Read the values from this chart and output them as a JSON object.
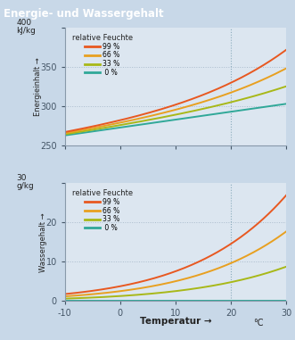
{
  "title": "Energie- und Wassergehalt",
  "title_bg": "#1a87c8",
  "title_color": "#ffffff",
  "fig_bg": "#c8d8e8",
  "plot_bg": "#dce6f0",
  "temp_range": [
    -10,
    30
  ],
  "vline_temp": 20,
  "vline_color": "#88aabb",
  "grid_color": "#aabbcc",
  "energy_ylabel": "Energieinhalt →",
  "energy_yunits": "400\nkJ/kg",
  "energy_ylim": [
    250,
    400
  ],
  "energy_yticks": [
    250,
    300,
    350,
    400
  ],
  "energy_hlines": [
    300,
    350
  ],
  "water_ylabel": "Wassergehalt →",
  "water_yunits": "30\ng/kg",
  "water_ylim": [
    0,
    30
  ],
  "water_yticks": [
    0,
    10,
    20,
    30
  ],
  "water_hlines": [
    10,
    20
  ],
  "xlabel": "Temperatur →",
  "xlabel_unit": "°C",
  "humidity_levels": [
    99,
    66,
    33,
    0
  ],
  "humidity_colors": [
    "#e85820",
    "#e8a020",
    "#a8b818",
    "#30a898"
  ],
  "humidity_labels": [
    "99 %",
    "66 %",
    "33 %",
    " 0 %"
  ],
  "legend_title": "relative Feuchte"
}
